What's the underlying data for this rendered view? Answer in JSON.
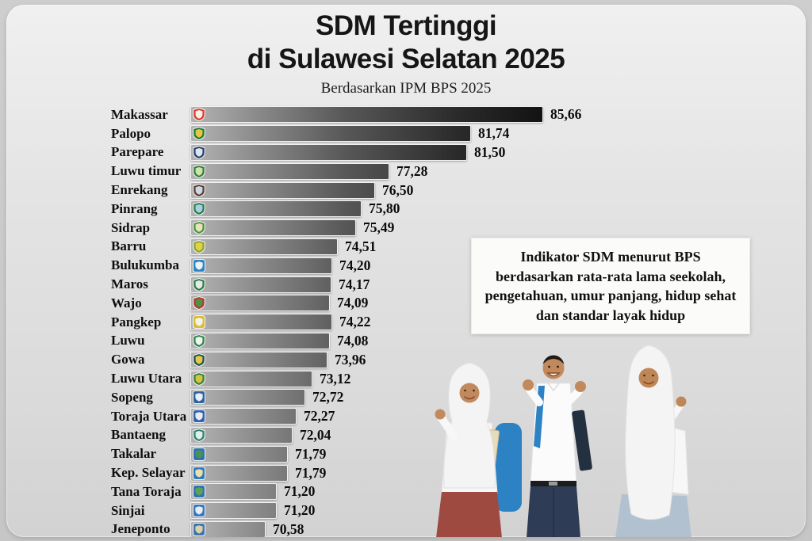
{
  "palette": {
    "outer_bg": "#c7c7c7",
    "card_bg": "#e4e4e4",
    "bar_gradient_start": "#b4b4b4",
    "bar_gradient_end": "#0e0e0e",
    "info_box_bg": "#fbfbfa",
    "text_color": "#111111"
  },
  "header": {
    "title_line1": "SDM Tertinggi",
    "title_line2": "di Sulawesi Selatan 2025",
    "subtitle": "Berdasarkan IPM BPS 2025"
  },
  "info_box": {
    "lines": [
      "Indikator SDM menurut BPS",
      "berdasarkan rata-rata lama seekolah,",
      "pengetahuan, umur panjang, hidup sehat",
      "dan standar layak hidup"
    ]
  },
  "illustration": {
    "name": "students-photo",
    "description": "Three smiling students (two girls in white hijab, one boy in white school uniform) raising their fists in celebration"
  },
  "chart_data": {
    "type": "bar",
    "orientation": "horizontal",
    "title": "SDM Tertinggi di Sulawesi Selatan 2025",
    "subtitle": "Berdasarkan IPM BPS 2025",
    "xlim": [
      66.5,
      86.5
    ],
    "grid": false,
    "legend": false,
    "value_format": "comma-decimal",
    "categories": [
      "Makassar",
      "Palopo",
      "Parepare",
      "Luwu timur",
      "Enrekang",
      "Pinrang",
      "Sidrap",
      "Barru",
      "Bulukumba",
      "Maros",
      "Wajo",
      "Pangkep",
      "Luwu",
      "Gowa",
      "Luwu Utara",
      "Sopeng",
      "Toraja Utara",
      "Bantaeng",
      "Takalar",
      "Kep. Selayar",
      "Tana Toraja",
      "Sinjai",
      "Jeneponto"
    ],
    "values": [
      85.66,
      81.74,
      81.5,
      77.28,
      76.5,
      75.8,
      75.49,
      74.51,
      74.2,
      74.17,
      74.09,
      74.22,
      74.08,
      73.96,
      73.12,
      72.72,
      72.27,
      72.04,
      71.79,
      71.79,
      71.2,
      71.2,
      70.58
    ],
    "value_labels": [
      "85,66",
      "81,74",
      "81,50",
      "77,28",
      "76,50",
      "75,80",
      "75,49",
      "74,51",
      "74,20",
      "74,17",
      "74,09",
      "74,22",
      "74,08",
      "73,96",
      "73,12",
      "72,72",
      "72,27",
      "72,04",
      "71,79",
      "71,79",
      "71,20",
      "71,20",
      "70,58"
    ],
    "emblems": [
      {
        "shape": "shield",
        "shield": "#d93a32",
        "inner": "#f7f2e2"
      },
      {
        "shape": "shield",
        "shield": "#1e7a3c",
        "inner": "#e7c73f"
      },
      {
        "shape": "shield",
        "shield": "#27426e",
        "inner": "#dfe5ee"
      },
      {
        "shape": "shield",
        "shield": "#2f7f3e",
        "inner": "#cfe3a8"
      },
      {
        "shape": "shield",
        "shield": "#5d3a34",
        "inner": "#cdd9e2"
      },
      {
        "shape": "shield",
        "shield": "#2e7d4b",
        "inner": "#a9cfe5"
      },
      {
        "shape": "shield",
        "shield": "#49953f",
        "inner": "#e9e2bc"
      },
      {
        "shape": "shield",
        "shield": "#86a63a",
        "inner": "#e4cf45"
      },
      {
        "shape": "square",
        "shield": "#2f86c5",
        "inner": "#eef3f6"
      },
      {
        "shape": "shield",
        "shield": "#2d7c47",
        "inner": "#e6e9e4"
      },
      {
        "shape": "shield",
        "shield": "#b5372e",
        "inner": "#4d9245"
      },
      {
        "shape": "square",
        "shield": "#d9bc3f",
        "inner": "#f6f4ea"
      },
      {
        "shape": "shield",
        "shield": "#2f8449",
        "inner": "#eef4ee"
      },
      {
        "shape": "shield",
        "shield": "#1f5248",
        "inner": "#e2c94c"
      },
      {
        "shape": "shield",
        "shield": "#3c8038",
        "inner": "#d3c544"
      },
      {
        "shape": "square",
        "shield": "#2f62a0",
        "inner": "#e9f0f7"
      },
      {
        "shape": "square",
        "shield": "#3162ab",
        "inner": "#e9ecf2"
      },
      {
        "shape": "shield",
        "shield": "#2f8070",
        "inner": "#dff0e6"
      },
      {
        "shape": "square",
        "shield": "#2f72b4",
        "inner": "#47934f"
      },
      {
        "shape": "square",
        "shield": "#2f7abc",
        "inner": "#ecdfae"
      },
      {
        "shape": "square",
        "shield": "#3172b2",
        "inner": "#5aa355"
      },
      {
        "shape": "square",
        "shield": "#3a77bb",
        "inner": "#e6edf4"
      },
      {
        "shape": "square",
        "shield": "#3d74b4",
        "inner": "#dcd3a4"
      }
    ]
  }
}
